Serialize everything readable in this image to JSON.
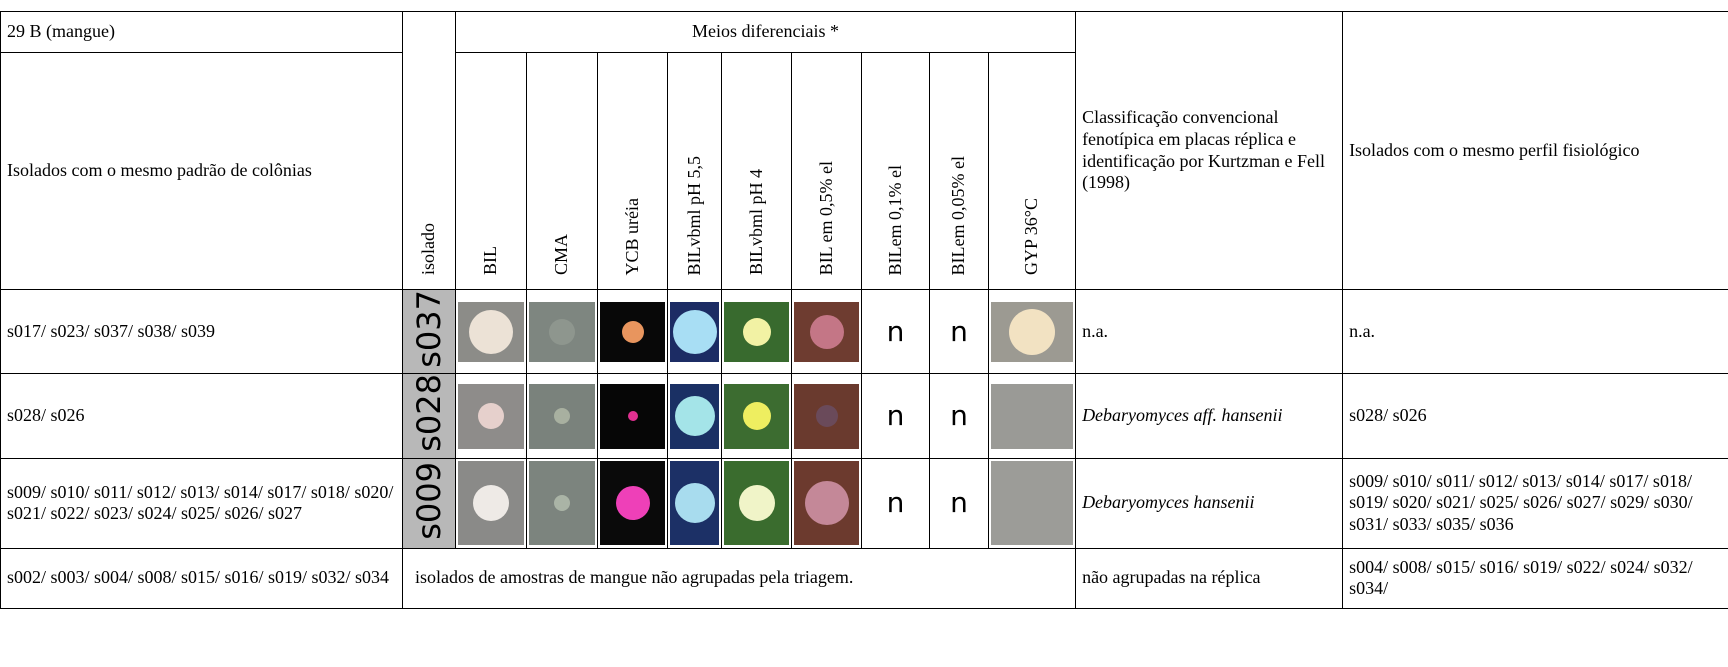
{
  "header": {
    "sample": "29 B (mangue)",
    "media_group": "Meios diferenciais *"
  },
  "columns": [
    "Isolados com o mesmo padrão de colônias",
    "isolado",
    "BIL",
    "CMA",
    "YCB uréia",
    "BILvbml pH 5,5",
    "BILvbml pH 4",
    "BIL em 0,5% el",
    "BILem 0,1% el",
    "BILem 0,05% el",
    "GYP 36°C",
    "Classificação convencional fenotípica em placas réplica e identificação por Kurtzman e Fell (1998)",
    "Isolados com o mesmo perfil fisiológico"
  ],
  "rows": [
    {
      "isolates": "s017/ s023/ s037/ s038/ s039",
      "isolado": "s037",
      "bil_01": "n",
      "bil_005": "n",
      "classification": "n.a.",
      "profile": "n.a."
    },
    {
      "isolates": "s028/ s026",
      "isolado": "s028",
      "bil_01": "n",
      "bil_005": "n",
      "classification": "Debaryomyces aff. hansenii",
      "profile": "s028/ s026"
    },
    {
      "isolates": "s009/ s010/ s011/ s012/ s013/ s014/ s017/ s018/ s020/ s021/ s022/ s023/ s024/ s025/ s026/ s027",
      "isolado": "s009",
      "bil_01": "n",
      "bil_005": "n",
      "classification": "Debaryomyces hansenii",
      "profile": "s009/ s010/ s011/ s012/ s013/ s014/ s017/ s018/ s019/ s020/ s021/ s025/ s026/ s027/ s029/ s030/ s031/ s033/ s035/ s036"
    }
  ],
  "last_row": {
    "isolates": "s002/ s003/ s004/ s008/ s015/ s016/ s019/ s032/ s034",
    "note": "isolados de amostras de mangue não agrupadas pela triagem.",
    "classification": "não agrupadas na réplica",
    "profile": "s004/ s008/ s015/ s016/ s019/ s022/ s024/ s032/ s034/"
  }
}
